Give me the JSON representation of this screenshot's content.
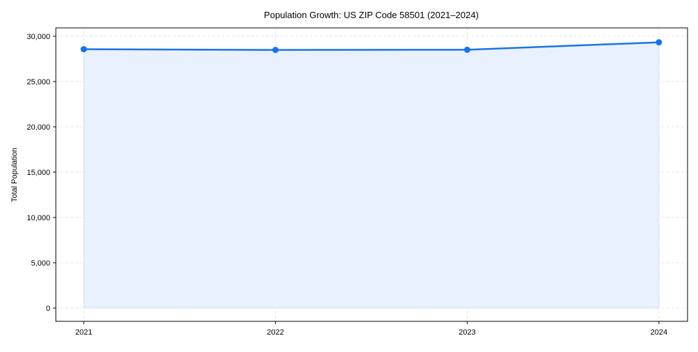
{
  "chart_data": {
    "type": "area",
    "title": "Population Growth: US ZIP Code 58501 (2021–2024)",
    "xlabel": "",
    "ylabel": "Total Population",
    "categories": [
      "2021",
      "2022",
      "2023",
      "2024"
    ],
    "series": [
      {
        "name": "Total Population",
        "values": [
          28570,
          28490,
          28510,
          29330
        ]
      }
    ],
    "ylim": [
      0,
      30000
    ],
    "yticks": [
      0,
      5000,
      10000,
      15000,
      20000,
      25000,
      30000
    ],
    "ytick_labels": [
      "0",
      "5,000",
      "10,000",
      "15,000",
      "20,000",
      "25,000",
      "30,000"
    ],
    "grid": true,
    "colors": {
      "line": "#1a73e8",
      "fill": "#e6effd",
      "grid": "#dddddd"
    }
  }
}
